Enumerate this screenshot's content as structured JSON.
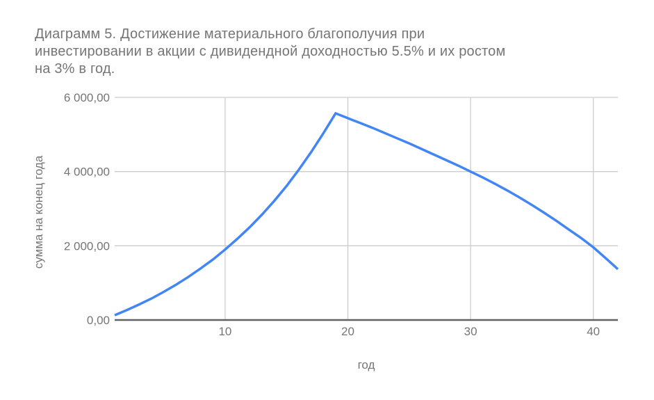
{
  "title_lines": [
    "Диаграмм 5. Достижение материального благополучия при",
    "инвестировании в акции с дивидендной доходностью 5.5% и их ростом",
    "на 3% в год."
  ],
  "colors": {
    "line": "#4285f4",
    "grid": "#cccccc",
    "axis": "#616161",
    "text": "#757575",
    "background": "#ffffff"
  },
  "chart_data": {
    "type": "line",
    "title": "Диаграмм 5. Достижение материального благополучия при инвестировании в акции с дивидендной доходностью 5.5% и их ростом на 3% в год.",
    "xlabel": "год",
    "ylabel": "сумма на конец года",
    "grid": true,
    "legend": "none",
    "xlim": [
      1,
      42
    ],
    "ylim": [
      0,
      6000
    ],
    "x_ticks": [
      10,
      20,
      30,
      40
    ],
    "y_ticks": [
      {
        "value": 0,
        "label": "0,00"
      },
      {
        "value": 2000,
        "label": "2 000,00"
      },
      {
        "value": 4000,
        "label": "4 000,00"
      },
      {
        "value": 6000,
        "label": "6 000,00"
      }
    ],
    "series": [
      {
        "name": "сумма на конец года",
        "color": "#4285f4",
        "x": [
          1,
          2,
          3,
          4,
          5,
          6,
          7,
          8,
          9,
          10,
          11,
          12,
          13,
          14,
          15,
          16,
          17,
          18,
          19,
          20,
          21,
          22,
          23,
          24,
          25,
          26,
          27,
          28,
          29,
          30,
          31,
          32,
          33,
          34,
          35,
          36,
          37,
          38,
          39,
          40,
          41,
          42
        ],
        "values": [
          130,
          270,
          420,
          580,
          760,
          950,
          1160,
          1390,
          1630,
          1900,
          2190,
          2500,
          2840,
          3210,
          3610,
          4050,
          4520,
          5030,
          5570,
          5440,
          5310,
          5180,
          5040,
          4900,
          4760,
          4610,
          4460,
          4310,
          4160,
          4000,
          3840,
          3670,
          3490,
          3300,
          3100,
          2890,
          2670,
          2440,
          2210,
          1960,
          1670,
          1370
        ]
      }
    ],
    "peak": {
      "x": 19,
      "value": 5570
    }
  }
}
